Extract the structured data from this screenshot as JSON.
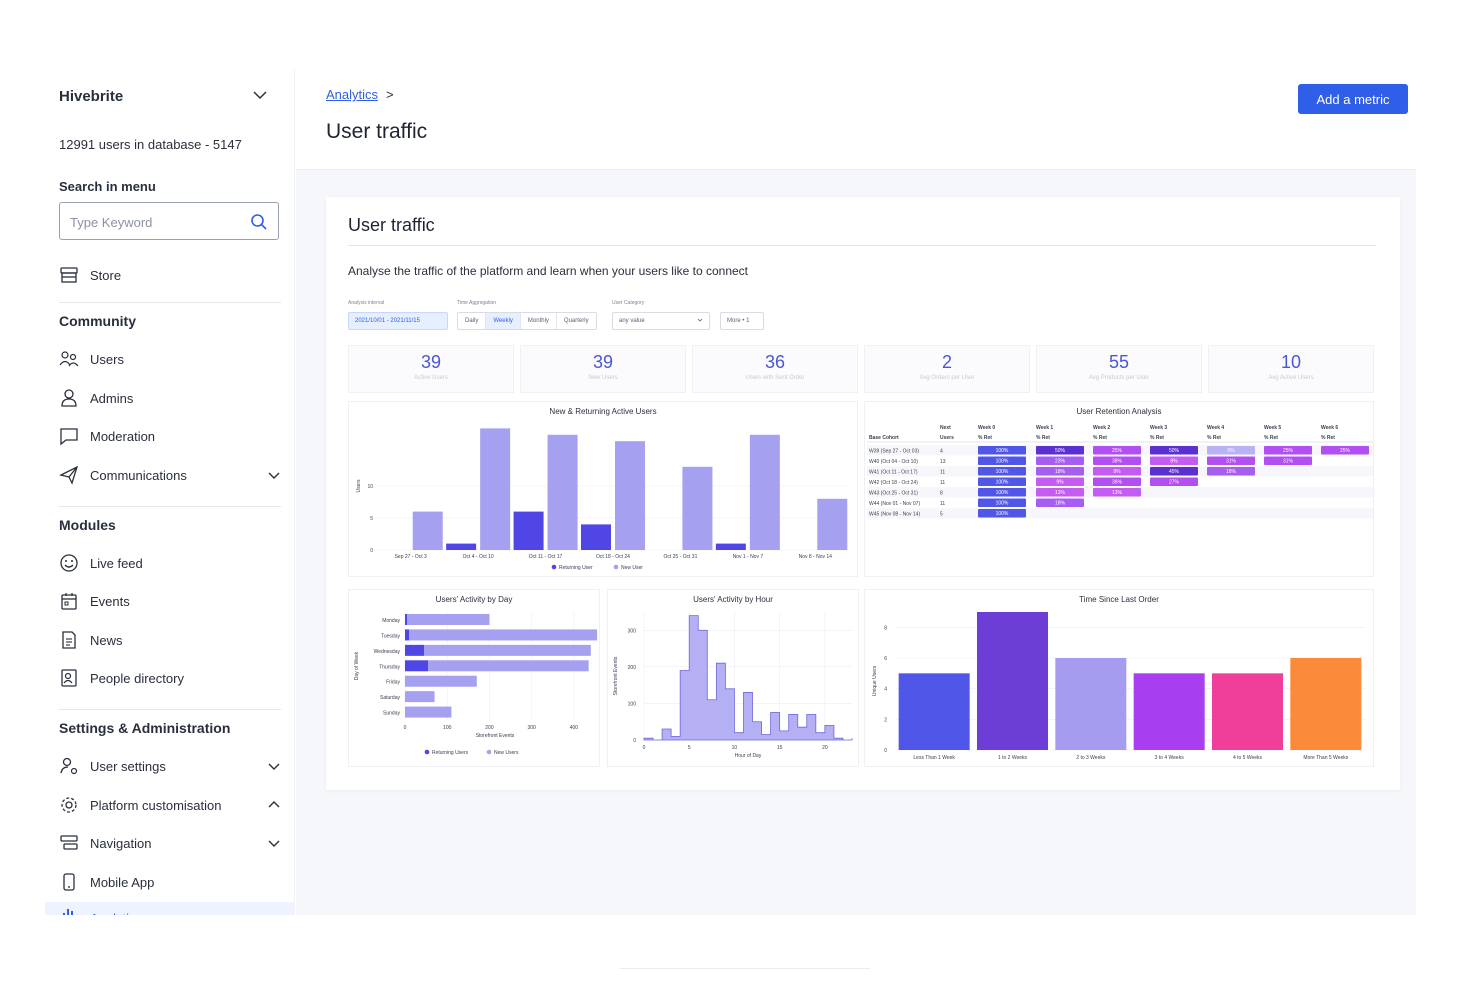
{
  "sidebar": {
    "org_name": "Hivebrite",
    "users_count": "12991 users in database - 5147",
    "search_label": "Search in menu",
    "search_placeholder": "Type Keyword",
    "store": "Store",
    "sections": {
      "community": "Community",
      "modules": "Modules",
      "settings": "Settings & Administration"
    },
    "community_items": [
      "Users",
      "Admins",
      "Moderation",
      "Communications"
    ],
    "modules_items": [
      "Live feed",
      "Events",
      "News",
      "People directory"
    ],
    "settings_items": [
      "User settings",
      "Platform customisation",
      "Navigation",
      "Mobile App"
    ],
    "active_item": "Analytics",
    "icons": [
      "store-icon",
      "users-icon",
      "admin-icon",
      "moderation-icon",
      "megaphone-icon",
      "live-feed-icon",
      "calendar-icon",
      "news-icon",
      "people-directory-icon",
      "user-settings-icon",
      "gear-icon",
      "navigation-icon",
      "mobile-icon",
      "analytics-icon"
    ]
  },
  "header": {
    "breadcrumb": "Analytics",
    "breadcrumb_sep": ">",
    "title": "User traffic",
    "add_metric": "Add a metric"
  },
  "card": {
    "title": "User traffic",
    "description": "Analyse the traffic of the platform and learn when your users like to connect",
    "filters": {
      "interval_label": "Analysis interval",
      "interval_value": "2021/10/01 - 2021/11/15",
      "aggregation_label": "Time Aggregation",
      "aggregation_options": [
        "Daily",
        "Weekly",
        "Monthly",
        "Quarterly"
      ],
      "aggregation_selected": "Weekly",
      "category_label": "User Category",
      "category_value": "any value",
      "more": "More • 1"
    },
    "kpis": [
      {
        "value": "39",
        "label": "Active Users"
      },
      {
        "value": "39",
        "label": "New Users"
      },
      {
        "value": "36",
        "label": "Users with Sent Order"
      },
      {
        "value": "2",
        "label": "Avg Orders per User"
      },
      {
        "value": "55",
        "label": "Avg Products per User"
      },
      {
        "value": "10",
        "label": "Avg Active Users"
      }
    ],
    "colors": {
      "accent": "#2f5ee8",
      "kpi": "#4a56d6",
      "returning": "#4f46e5",
      "new": "#a5a0f0"
    }
  },
  "chart_data": [
    {
      "type": "bar",
      "title": "New & Returning Active Users",
      "ylabel": "Users",
      "xlabel": "",
      "categories": [
        "Sep 27 - Oct 3",
        "Oct 4 - Oct 10",
        "Oct 11 - Oct 17",
        "Oct 18 - Oct 24",
        "Oct 25 - Oct 31",
        "Nov 1 - Nov 7",
        "Nov 8 - Nov 14"
      ],
      "series": [
        {
          "name": "Returning User",
          "values": [
            0,
            1,
            6,
            4,
            0,
            1,
            0
          ]
        },
        {
          "name": "New User",
          "values": [
            6,
            19,
            18,
            17,
            13,
            18,
            8
          ]
        }
      ],
      "yticks": [
        0,
        5,
        10
      ],
      "ylim": [
        0,
        20
      ],
      "legend": "bottom"
    },
    {
      "type": "table",
      "title": "User Retention Analysis",
      "columns": [
        "Base Cohort",
        "Users",
        "Week 0 % Ret",
        "Week 1 % Ret",
        "Week 2 % Ret",
        "Week 3 % Ret",
        "Week 4 % Ret",
        "Week 5 % Ret",
        "Week 6 % Ret"
      ],
      "header_top": [
        "Next",
        "Week 0",
        "Week 1",
        "Week 2",
        "Week 3",
        "Week 4",
        "Week 5",
        "Week 6"
      ],
      "rows": [
        [
          "W39 (Sep 27 - Oct 03)",
          "4",
          "100%",
          "50%",
          "25%",
          "50%",
          "0%",
          "25%",
          "25%"
        ],
        [
          "W40 (Oct 04 - Oct 10)",
          "13",
          "100%",
          "23%",
          "38%",
          "8%",
          "31%",
          "31%",
          ""
        ],
        [
          "W41 (Oct 11 - Oct 17)",
          "11",
          "100%",
          "18%",
          "9%",
          "45%",
          "18%",
          "",
          ""
        ],
        [
          "W42 (Oct 18 - Oct 24)",
          "11",
          "100%",
          "9%",
          "36%",
          "27%",
          "",
          "",
          ""
        ],
        [
          "W43 (Oct 25 - Oct 31)",
          "8",
          "100%",
          "13%",
          "13%",
          "",
          "",
          "",
          ""
        ],
        [
          "W44 (Nov 01 - Nov 07)",
          "11",
          "100%",
          "18%",
          "",
          "",
          "",
          "",
          ""
        ],
        [
          "W45 (Nov 08 - Nov 14)",
          "5",
          "100%",
          "",
          "",
          "",
          "",
          "",
          ""
        ]
      ]
    },
    {
      "type": "bar",
      "orientation": "horizontal",
      "title": "Users' Activity by Day",
      "xlabel": "Storefront Events",
      "ylabel": "Day of Week",
      "categories": [
        "Monday",
        "Tuesday",
        "Wednesday",
        "Thursday",
        "Friday",
        "Saturday",
        "Sunday"
      ],
      "series": [
        {
          "name": "Returning Users",
          "values": [
            5,
            10,
            45,
            55,
            0,
            0,
            0
          ]
        },
        {
          "name": "New Users",
          "values": [
            195,
            445,
            395,
            380,
            170,
            70,
            110
          ]
        }
      ],
      "xticks": [
        0,
        100,
        200,
        300,
        400
      ],
      "xlim": [
        0,
        450
      ],
      "legend": "bottom"
    },
    {
      "type": "area",
      "title": "Users' Activity by Hour",
      "xlabel": "Hour of Day",
      "ylabel": "Storefront Events",
      "x": [
        0,
        1,
        2,
        3,
        4,
        5,
        6,
        7,
        8,
        9,
        10,
        11,
        12,
        13,
        14,
        15,
        16,
        17,
        18,
        19,
        20,
        21,
        22,
        23
      ],
      "values": [
        5,
        0,
        30,
        10,
        190,
        340,
        300,
        110,
        210,
        140,
        20,
        130,
        50,
        15,
        75,
        25,
        70,
        35,
        70,
        20,
        40,
        5,
        0,
        5
      ],
      "xticks": [
        0,
        5,
        10,
        15,
        20
      ],
      "yticks": [
        0,
        100,
        200,
        300
      ],
      "ylim": [
        0,
        350
      ]
    },
    {
      "type": "bar",
      "title": "Time Since Last Order",
      "ylabel": "Unique Users",
      "xlabel": "",
      "categories": [
        "Less Than 1 Week",
        "1 to 2 Weeks",
        "2 to 3 Weeks",
        "3 to 4 Weeks",
        "4 to 5 Weeks",
        "More Than 5 Weeks"
      ],
      "values": [
        5,
        9,
        6,
        5,
        5,
        6
      ],
      "colors": [
        "#4f56e8",
        "#6c3ed6",
        "#a59cf0",
        "#a73ef0",
        "#f03f9a",
        "#fb8a3a"
      ],
      "yticks": [
        0,
        2,
        4,
        6,
        8
      ],
      "ylim": [
        0,
        9
      ]
    }
  ]
}
